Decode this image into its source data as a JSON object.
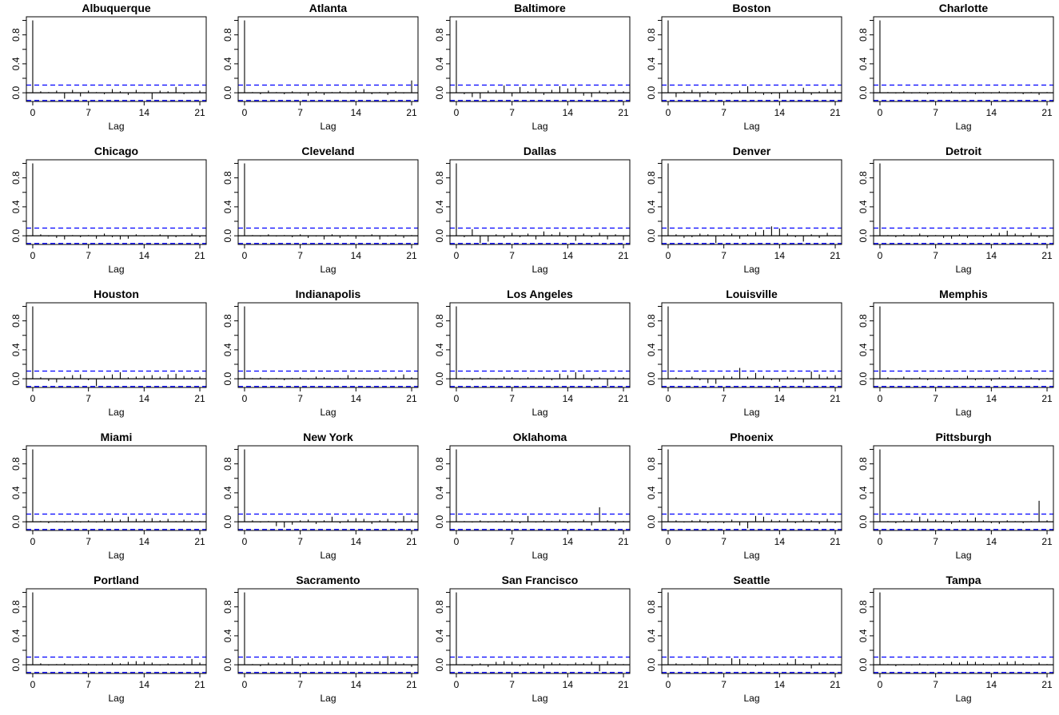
{
  "chart_data": {
    "type": "bar",
    "plot_kind": "acf",
    "xlabel": "Lag",
    "ylabel": "",
    "xlim": [
      -0.8,
      21.8
    ],
    "ylim": [
      -0.12,
      1.05
    ],
    "x_ticks": [
      0,
      7,
      14,
      21
    ],
    "y_ticks": [
      0.0,
      0.4,
      0.8
    ],
    "y_tick_labels": [
      "0.0",
      "0.4",
      "0.8"
    ],
    "colors": {
      "bars": "#000000",
      "confidence_band": "#0000ff",
      "frame": "#000000"
    },
    "panels": [
      {
        "title": "Albuquerque",
        "confidence_bound": 0.106,
        "acf": [
          1.0,
          0.02,
          0.01,
          0.03,
          -0.08,
          0.04,
          -0.05,
          0.03,
          0.01,
          -0.02,
          0.05,
          0.02,
          -0.03,
          0.04,
          -0.01,
          -0.09,
          0.03,
          0.02,
          0.08,
          -0.02,
          0.01,
          0.03
        ]
      },
      {
        "title": "Atlanta",
        "confidence_bound": 0.106,
        "acf": [
          1.0,
          0.01,
          -0.02,
          0.03,
          0.01,
          -0.02,
          0.02,
          -0.01,
          -0.04,
          0.02,
          -0.03,
          0.01,
          0.02,
          -0.01,
          0.03,
          0.05,
          -0.02,
          0.01,
          -0.03,
          0.02,
          -0.01,
          0.17
        ]
      },
      {
        "title": "Baltimore",
        "confidence_bound": 0.106,
        "acf": [
          1.0,
          -0.02,
          -0.06,
          -0.08,
          0.03,
          0.04,
          0.1,
          -0.05,
          0.08,
          0.02,
          0.06,
          -0.03,
          0.04,
          0.09,
          0.06,
          0.07,
          -0.04,
          -0.06,
          0.03,
          -0.02,
          0.04,
          0.02
        ]
      },
      {
        "title": "Boston",
        "confidence_bound": 0.106,
        "acf": [
          1.0,
          -0.06,
          0.02,
          0.04,
          -0.06,
          0.02,
          -0.03,
          0.01,
          -0.02,
          0.03,
          0.09,
          0.02,
          -0.03,
          -0.02,
          -0.08,
          0.04,
          0.03,
          0.07,
          -0.03,
          0.02,
          0.05,
          0.03
        ]
      },
      {
        "title": "Charlotte",
        "confidence_bound": 0.106,
        "acf": [
          1.0,
          0.01,
          -0.01,
          0.02,
          -0.01,
          0.01,
          -0.02,
          0.01,
          -0.01,
          0.02,
          -0.01,
          0.01,
          -0.02,
          0.01,
          -0.01,
          0.02,
          -0.01,
          0.01,
          -0.02,
          0.01,
          -0.03,
          0.01
        ]
      },
      {
        "title": "Chicago",
        "confidence_bound": 0.106,
        "acf": [
          1.0,
          0.02,
          -0.01,
          -0.03,
          -0.05,
          0.01,
          -0.02,
          0.01,
          -0.04,
          0.03,
          -0.02,
          -0.05,
          -0.04,
          0.02,
          -0.01,
          0.01,
          0.02,
          -0.04,
          -0.02,
          0.01,
          0.03,
          -0.02
        ]
      },
      {
        "title": "Cleveland",
        "confidence_bound": 0.106,
        "acf": [
          1.0,
          0.01,
          -0.01,
          0.02,
          -0.01,
          0.01,
          -0.02,
          0.02,
          -0.03,
          -0.01,
          -0.05,
          0.02,
          -0.03,
          0.01,
          -0.04,
          -0.01,
          0.02,
          -0.05,
          -0.01,
          0.02,
          -0.03,
          0.01
        ]
      },
      {
        "title": "Dallas",
        "confidence_bound": 0.106,
        "acf": [
          1.0,
          -0.02,
          0.09,
          -0.1,
          -0.08,
          0.02,
          -0.03,
          0.04,
          -0.02,
          0.03,
          -0.05,
          0.06,
          0.02,
          0.05,
          -0.02,
          -0.07,
          0.03,
          -0.02,
          0.04,
          -0.05,
          0.02,
          -0.06
        ]
      },
      {
        "title": "Denver",
        "confidence_bound": 0.106,
        "acf": [
          1.0,
          0.02,
          -0.03,
          -0.02,
          0.03,
          0.02,
          -0.1,
          0.02,
          0.03,
          -0.04,
          0.02,
          0.05,
          0.08,
          0.13,
          0.1,
          0.03,
          -0.02,
          -0.08,
          0.02,
          -0.03,
          0.04,
          0.01
        ]
      },
      {
        "title": "Detroit",
        "confidence_bound": 0.106,
        "acf": [
          1.0,
          0.01,
          -0.02,
          0.02,
          -0.01,
          0.03,
          -0.02,
          0.01,
          -0.03,
          -0.04,
          0.02,
          -0.03,
          0.01,
          -0.02,
          0.03,
          0.04,
          0.07,
          0.03,
          -0.02,
          0.04,
          -0.03,
          -0.02
        ]
      },
      {
        "title": "Houston",
        "confidence_bound": 0.106,
        "acf": [
          1.0,
          0.02,
          -0.03,
          -0.05,
          0.03,
          0.05,
          0.06,
          -0.02,
          -0.1,
          0.04,
          0.06,
          0.09,
          0.02,
          0.03,
          0.04,
          0.05,
          0.03,
          0.06,
          0.07,
          0.04,
          0.02,
          0.03
        ]
      },
      {
        "title": "Indianapolis",
        "confidence_bound": 0.106,
        "acf": [
          1.0,
          0.01,
          0.02,
          -0.01,
          0.01,
          -0.02,
          0.01,
          0.02,
          -0.01,
          0.03,
          0.02,
          -0.01,
          0.01,
          0.05,
          0.02,
          0.01,
          -0.01,
          0.02,
          0.01,
          0.03,
          0.06,
          0.02
        ]
      },
      {
        "title": "Los Angeles",
        "confidence_bound": 0.106,
        "acf": [
          1.0,
          0.01,
          -0.02,
          0.02,
          0.01,
          -0.01,
          0.03,
          0.02,
          -0.01,
          0.02,
          0.01,
          0.03,
          -0.02,
          0.07,
          0.05,
          0.09,
          0.06,
          -0.03,
          0.02,
          -0.1,
          0.03,
          0.02
        ]
      },
      {
        "title": "Louisville",
        "confidence_bound": 0.106,
        "acf": [
          1.0,
          0.02,
          -0.01,
          0.03,
          -0.02,
          -0.06,
          -0.07,
          0.04,
          0.03,
          0.15,
          0.03,
          0.08,
          0.04,
          -0.02,
          -0.04,
          0.03,
          0.02,
          -0.05,
          0.1,
          0.06,
          0.03,
          0.05
        ]
      },
      {
        "title": "Memphis",
        "confidence_bound": 0.106,
        "acf": [
          1.0,
          0.02,
          -0.01,
          0.03,
          -0.01,
          0.02,
          -0.02,
          0.01,
          0.02,
          -0.01,
          0.01,
          0.04,
          -0.02,
          0.01,
          -0.03,
          0.02,
          0.01,
          0.03,
          -0.01,
          0.02,
          -0.02,
          0.01
        ]
      },
      {
        "title": "Miami",
        "confidence_bound": 0.106,
        "acf": [
          1.0,
          0.01,
          -0.02,
          0.01,
          -0.01,
          0.02,
          -0.01,
          0.02,
          -0.01,
          0.03,
          0.05,
          0.03,
          0.07,
          0.04,
          0.03,
          0.05,
          0.02,
          0.04,
          0.01,
          0.03,
          0.02,
          0.01
        ]
      },
      {
        "title": "New York",
        "confidence_bound": 0.106,
        "acf": [
          1.0,
          0.02,
          -0.01,
          0.01,
          -0.06,
          -0.08,
          -0.04,
          0.02,
          0.03,
          -0.03,
          0.02,
          0.07,
          -0.02,
          0.03,
          0.05,
          0.04,
          -0.03,
          0.02,
          0.04,
          -0.02,
          0.08,
          0.03
        ]
      },
      {
        "title": "Oklahoma",
        "confidence_bound": 0.106,
        "acf": [
          1.0,
          0.01,
          -0.01,
          0.02,
          -0.01,
          0.01,
          0.02,
          0.03,
          -0.02,
          0.08,
          -0.01,
          0.02,
          0.01,
          0.03,
          -0.02,
          0.01,
          0.03,
          -0.05,
          0.2,
          0.02,
          -0.03,
          0.01
        ]
      },
      {
        "title": "Phoenix",
        "confidence_bound": 0.106,
        "acf": [
          1.0,
          0.02,
          -0.01,
          0.02,
          0.03,
          -0.02,
          0.01,
          -0.02,
          0.03,
          -0.05,
          -0.09,
          0.08,
          0.07,
          0.03,
          0.02,
          0.04,
          -0.02,
          0.03,
          0.02,
          -0.03,
          0.04,
          -0.02
        ]
      },
      {
        "title": "Pittsburgh",
        "confidence_bound": 0.106,
        "acf": [
          1.0,
          0.01,
          -0.02,
          0.02,
          0.03,
          0.07,
          0.04,
          0.03,
          0.02,
          -0.03,
          0.02,
          0.03,
          0.06,
          0.02,
          -0.02,
          -0.03,
          0.02,
          0.01,
          -0.02,
          0.01,
          0.29,
          0.02
        ]
      },
      {
        "title": "Portland",
        "confidence_bound": 0.106,
        "acf": [
          1.0,
          0.02,
          -0.01,
          0.01,
          0.02,
          -0.01,
          0.01,
          0.02,
          -0.01,
          0.01,
          0.03,
          0.02,
          0.04,
          0.05,
          0.04,
          0.03,
          -0.01,
          0.02,
          0.01,
          0.02,
          0.08,
          0.03
        ]
      },
      {
        "title": "Sacramento",
        "confidence_bound": 0.106,
        "acf": [
          1.0,
          0.01,
          -0.02,
          0.03,
          0.02,
          0.03,
          0.09,
          -0.02,
          0.03,
          0.02,
          0.05,
          0.04,
          0.06,
          0.05,
          0.04,
          0.03,
          0.02,
          0.05,
          0.12,
          0.04,
          0.02,
          -0.03
        ]
      },
      {
        "title": "San Francisco",
        "confidence_bound": 0.106,
        "acf": [
          1.0,
          0.01,
          -0.02,
          0.02,
          -0.03,
          0.04,
          0.05,
          0.04,
          -0.02,
          0.03,
          0.02,
          -0.05,
          0.03,
          0.02,
          -0.01,
          0.03,
          0.02,
          0.04,
          -0.09,
          0.05,
          0.02,
          0.01
        ]
      },
      {
        "title": "Seattle",
        "confidence_bound": 0.106,
        "acf": [
          1.0,
          0.02,
          -0.01,
          0.02,
          -0.01,
          0.1,
          0.02,
          -0.01,
          0.09,
          0.08,
          0.02,
          -0.02,
          0.03,
          0.01,
          0.02,
          0.03,
          0.08,
          0.02,
          -0.05,
          0.03,
          0.02,
          0.01
        ]
      },
      {
        "title": "Tampa",
        "confidence_bound": 0.106,
        "acf": [
          1.0,
          0.01,
          -0.02,
          0.01,
          -0.01,
          0.02,
          -0.01,
          0.01,
          0.02,
          0.04,
          0.03,
          0.05,
          0.04,
          0.02,
          -0.01,
          0.03,
          0.04,
          0.05,
          0.02,
          -0.01,
          0.03,
          0.01
        ]
      }
    ]
  }
}
